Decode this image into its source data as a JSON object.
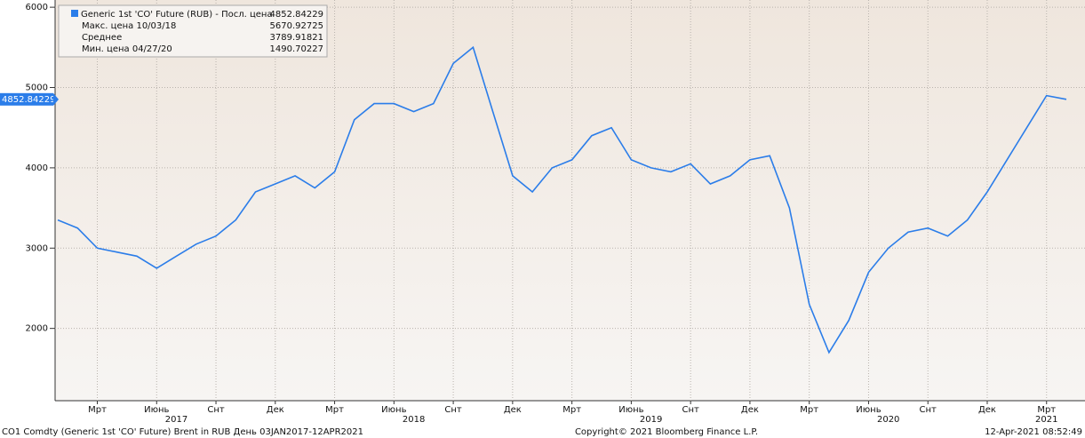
{
  "chart_data": {
    "type": "line",
    "legend": {
      "title": "Generic 1st 'CO' Future (RUB) - Посл. цена",
      "stats": [
        {
          "label": "Макс. цена 10/03/18",
          "value": "5670.92725"
        },
        {
          "label": "Среднее",
          "value": "3789.91821"
        },
        {
          "label": "Мин. цена 04/27/20",
          "value": "1490.70227"
        }
      ]
    },
    "x": [
      "2017-01",
      "2017-02",
      "2017-03",
      "2017-04",
      "2017-05",
      "2017-06",
      "2017-07",
      "2017-08",
      "2017-09",
      "2017-10",
      "2017-11",
      "2017-12",
      "2018-01",
      "2018-02",
      "2018-03",
      "2018-04",
      "2018-05",
      "2018-06",
      "2018-07",
      "2018-08",
      "2018-09",
      "2018-10",
      "2018-11",
      "2018-12",
      "2019-01",
      "2019-02",
      "2019-03",
      "2019-04",
      "2019-05",
      "2019-06",
      "2019-07",
      "2019-08",
      "2019-09",
      "2019-10",
      "2019-11",
      "2019-12",
      "2020-01",
      "2020-02",
      "2020-03",
      "2020-04",
      "2020-05",
      "2020-06",
      "2020-07",
      "2020-08",
      "2020-09",
      "2020-10",
      "2020-11",
      "2020-12",
      "2021-01",
      "2021-02",
      "2021-03",
      "2021-04"
    ],
    "series": [
      {
        "name": "Generic 1st 'CO' Future (RUB)",
        "color": "#2b7de9",
        "values": [
          3350,
          3250,
          3000,
          2950,
          2900,
          2750,
          2900,
          3050,
          3150,
          3350,
          3700,
          3800,
          3900,
          3750,
          3950,
          4600,
          4800,
          4800,
          4700,
          4800,
          5300,
          5500,
          4700,
          3900,
          3700,
          4000,
          4100,
          4400,
          4500,
          4100,
          4000,
          3950,
          4050,
          3800,
          3900,
          4100,
          4150,
          3500,
          2300,
          1700,
          2100,
          2700,
          3000,
          3200,
          3250,
          3150,
          3350,
          3700,
          4100,
          4500,
          4900,
          4852.84229
        ]
      }
    ],
    "xlim": [
      "2017-01",
      "2021-04"
    ],
    "ylim": [
      1100,
      6090
    ],
    "yticks": [
      2000,
      3000,
      4000,
      5000,
      6000
    ],
    "xticks": [
      {
        "value": "2017-03",
        "label": "Мрт"
      },
      {
        "value": "2017-06",
        "label": "Июнь"
      },
      {
        "value": "2017-09",
        "label": "Снт"
      },
      {
        "value": "2017-12",
        "label": "Дек"
      },
      {
        "value": "2018-03",
        "label": "Мрт"
      },
      {
        "value": "2018-06",
        "label": "Июнь"
      },
      {
        "value": "2018-09",
        "label": "Снт"
      },
      {
        "value": "2018-12",
        "label": "Дек"
      },
      {
        "value": "2019-03",
        "label": "Мрт"
      },
      {
        "value": "2019-06",
        "label": "Июнь"
      },
      {
        "value": "2019-09",
        "label": "Снт"
      },
      {
        "value": "2019-12",
        "label": "Дек"
      },
      {
        "value": "2020-03",
        "label": "Мрт"
      },
      {
        "value": "2020-06",
        "label": "Июнь"
      },
      {
        "value": "2020-09",
        "label": "Снт"
      },
      {
        "value": "2020-12",
        "label": "Дек"
      },
      {
        "value": "2021-03",
        "label": "Мрт"
      }
    ],
    "year_labels": [
      {
        "value": "2017-07",
        "label": "2017"
      },
      {
        "value": "2018-07",
        "label": "2018"
      },
      {
        "value": "2019-07",
        "label": "2019"
      },
      {
        "value": "2020-07",
        "label": "2020"
      },
      {
        "value": "2021-03",
        "label": "2021"
      }
    ],
    "grid": true,
    "footer": {
      "left": "CO1 Comdty (Generic 1st 'CO' Future) Brent in RUB  День 03JAN2017-12APR2021",
      "center": "Copyright© 2021 Bloomberg Finance L.P.",
      "right": "12-Apr-2021 08:52:49"
    }
  }
}
